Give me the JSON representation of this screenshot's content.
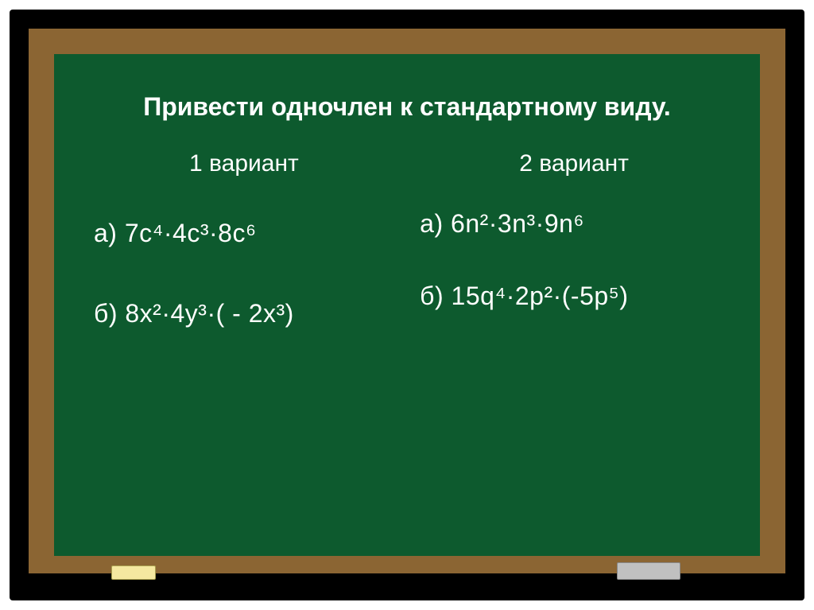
{
  "chalkboard": {
    "title": "Привести одночлен к стандартному виду.",
    "background_color": "#0d5a2e",
    "frame_color": "#8b6533",
    "outer_color": "#000000",
    "text_color": "#ffffff",
    "title_fontsize": 32,
    "variant_fontsize": 30,
    "problem_fontsize": 32,
    "variants": [
      {
        "header": "1 вариант",
        "problems": [
          {
            "label": "а)   7с⁴·4с³·8с⁶"
          },
          {
            "label": "б)  8х²·4у³·( - 2х³)"
          }
        ]
      },
      {
        "header": "2 вариант",
        "problems": [
          {
            "label": "а)   6n²·3n³·9n⁶"
          },
          {
            "label": "б)    15q⁴·2p²·(-5p⁵)"
          }
        ]
      }
    ],
    "chalk_color": "#f5e8a0",
    "eraser_color": "#c0c0c0"
  }
}
